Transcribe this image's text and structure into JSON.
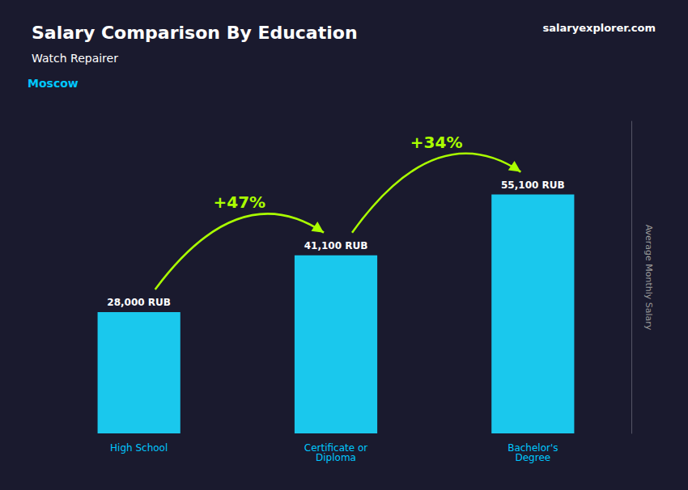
{
  "chart_data": {
    "type": "bar",
    "title": "Salary Comparison By Education",
    "subtitle": "Watch Repairer",
    "ylabel": "Average Monthly Salary",
    "categories": [
      "High School",
      "Certificate or\nDiploma",
      "Bachelor's\nDegree"
    ],
    "values": [
      28000,
      41100,
      55100
    ],
    "value_labels": [
      "28,000 RUB",
      "41,100 RUB",
      "55,100 RUB"
    ],
    "data_labels": true,
    "color": "#1ac8ed",
    "ylim": [
      0,
      72000
    ],
    "grid": false,
    "tick_labels": "x",
    "annotations": [
      {
        "text": "Moscow"
      },
      {
        "text": "salaryexplorer.com"
      },
      {
        "text": "+47%",
        "from": "High School",
        "to": "Certificate or\nDiploma"
      },
      {
        "text": "+34%",
        "from": "Certificate or\nDiploma",
        "to": "Bachelor's\nDegree"
      }
    ]
  }
}
